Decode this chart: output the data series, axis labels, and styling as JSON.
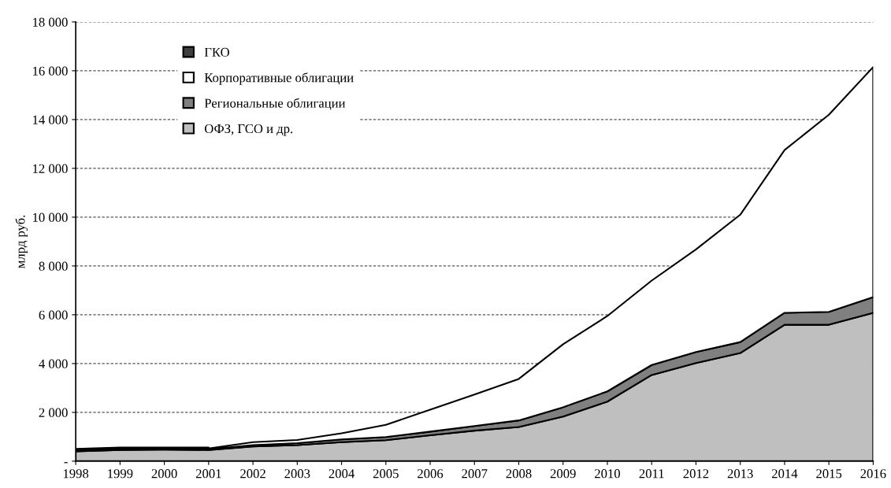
{
  "chart_data": {
    "type": "area",
    "stacked": true,
    "ylabel": "млрд руб.",
    "categories": [
      "1998",
      "1999",
      "2000",
      "2001",
      "2002",
      "2003",
      "2004",
      "2005",
      "2006",
      "2007",
      "2008",
      "2009",
      "2010",
      "2011",
      "2012",
      "2013",
      "2014",
      "2015",
      "2016"
    ],
    "series": [
      {
        "name": "ОФЗ, ГСО и др.",
        "color": "#bfbfbf",
        "values": [
          400,
          460,
          470,
          460,
          600,
          660,
          780,
          860,
          1060,
          1250,
          1400,
          1830,
          2440,
          3530,
          4020,
          4430,
          5590,
          5590,
          6080
        ]
      },
      {
        "name": "Региональные облигации",
        "color": "#808080",
        "values": [
          20,
          20,
          20,
          30,
          60,
          80,
          110,
          130,
          150,
          190,
          270,
          380,
          420,
          410,
          450,
          450,
          490,
          530,
          640
        ]
      },
      {
        "name": "Корпоративные облигации",
        "color": "#ffffff",
        "values": [
          0,
          20,
          20,
          30,
          120,
          130,
          250,
          500,
          900,
          1290,
          1700,
          2580,
          3090,
          3460,
          4210,
          5220,
          6670,
          8080,
          9430
        ]
      },
      {
        "name": "ГКО",
        "color": "#404040",
        "values": [
          80,
          60,
          50,
          40,
          null,
          null,
          null,
          null,
          null,
          null,
          null,
          null,
          null,
          null,
          null,
          null,
          null,
          null,
          null
        ]
      }
    ],
    "ylim": [
      0,
      18000
    ],
    "yticks": [
      {
        "value": 0,
        "label": "-"
      },
      {
        "value": 2000,
        "label": "2 000"
      },
      {
        "value": 4000,
        "label": "4 000"
      },
      {
        "value": 6000,
        "label": "6 000"
      },
      {
        "value": 8000,
        "label": "8 000"
      },
      {
        "value": 10000,
        "label": "10 000"
      },
      {
        "value": 12000,
        "label": "12 000"
      },
      {
        "value": 14000,
        "label": "14 000"
      },
      {
        "value": 16000,
        "label": "16 000"
      },
      {
        "value": 18000,
        "label": "18 000"
      }
    ],
    "grid": "y",
    "legend": "top left"
  }
}
